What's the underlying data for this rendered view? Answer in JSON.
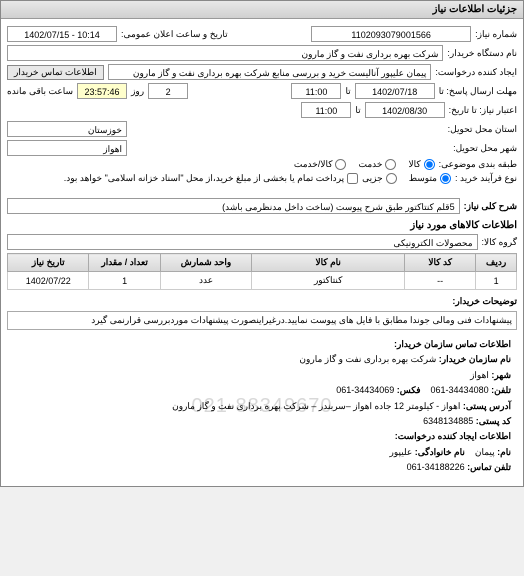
{
  "panel_title": "جزئیات اطلاعات نیاز",
  "req_number_label": "شماره نیاز:",
  "req_number": "1102093079001566",
  "announce_label": "تاریخ و ساعت اعلان عمومی:",
  "announce_value": "1402/07/15 - 10:14",
  "buyer_device_label": "نام دستگاه خریدار:",
  "buyer_device": "شرکت بهره برداری نفت و گاز مارون",
  "creator_label": "ایجاد کننده درخواست:",
  "creator": "پیمان علیپور آنالیست خرید و بررسی منابع شرکت بهره برداری نفت و گاز مارون",
  "buyer_contact_btn": "اطلاعات تماس خریدار",
  "deadline_label": "مهلت ارسال پاسخ: تا",
  "deadline_date": "1402/07/18",
  "deadline_time": "11:00",
  "deadline_up_to": "تا",
  "deadline_count": "2",
  "deadline_remain_label": "روز",
  "deadline_remain_time": "23:57:46",
  "deadline_remain_suffix": "ساعت باقی مانده",
  "validity_label": "اعتبار نیاز: تا تاریخ:",
  "validity_date": "1402/08/30",
  "validity_time": "11:00",
  "province_label": "استان محل تحویل:",
  "province": "خوزستان",
  "city_label": "شهر محل تحویل:",
  "city": "اهواز",
  "classify_label": "طبقه بندی موضوعی:",
  "radio_goods": "کالا",
  "radio_service": "خدمت",
  "radio_goods_service": "کالا/خدمت",
  "purchase_type_label": "نوع فرآیند خرید :",
  "radio_medium": "متوسط",
  "radio_partial": "جزیی",
  "purchase_note": "پرداخت تمام یا بخشی از مبلغ خرید،از محل \"اسناد خزانه اسلامی\" خواهد بود.",
  "need_desc_label": "شرح کلی نیاز:",
  "need_desc": "5قلم کنتاکتور طبق شرح پیوست (ساخت داخل مدنظرمی باشد)",
  "goods_info_title": "اطلاعات کالاهای مورد نیاز",
  "group_label": "گروه کالا:",
  "group_value": "محصولات الکترونیکی",
  "table": {
    "columns": [
      "ردیف",
      "کد کالا",
      "نام کالا",
      "واحد شمارش",
      "تعداد / مقدار",
      "تاریخ نیاز"
    ],
    "rows": [
      [
        "1",
        "--",
        "کنتاکتور",
        "عدد",
        "1",
        "1402/07/22"
      ]
    ],
    "col_widths": [
      "8%",
      "14%",
      "30%",
      "18%",
      "14%",
      "16%"
    ]
  },
  "buyer_notes_label": "توضیحات خریدار:",
  "buyer_notes": "پیشنهادات فنی ومالی جوندا مطابق با فایل های پیوست نمایید.درغیراینصورت پیشنهادات موردبررسی قرارنمی گیرد",
  "contact": {
    "title": "اطلاعات تماس سازمان خریدار:",
    "org_label": "نام سازمان خریدار:",
    "org": "شرکت بهره برداری نفت و گاز مارون",
    "city_label": "شهر:",
    "city": "اهواز",
    "phone_label": "تلفن:",
    "phone": "061-34434080",
    "fax_label": "فکس:",
    "fax": "061-34434069",
    "address_label": "آدرس پستی:",
    "address": "اهواز - کیلومتر 12 جاده اهواز –سربندر – شرکت بهره برداری نفت و گاز مارون",
    "postcode_label": "کد پستی:",
    "postcode": "6348134885",
    "creator_title": "اطلاعات ایجاد کننده درخواست:",
    "name_label": "نام:",
    "name": "پیمان",
    "family_label": "نام خانوادگی:",
    "family": "علیپور",
    "creator_phone_label": "تلفن تماس:",
    "creator_phone": "061-34188226",
    "watermark": "021-88349670"
  },
  "colors": {
    "header_bg1": "#e8e8e8",
    "header_bg2": "#d0d0d0",
    "border": "#888888",
    "field_yellow": "#ffffcc"
  }
}
